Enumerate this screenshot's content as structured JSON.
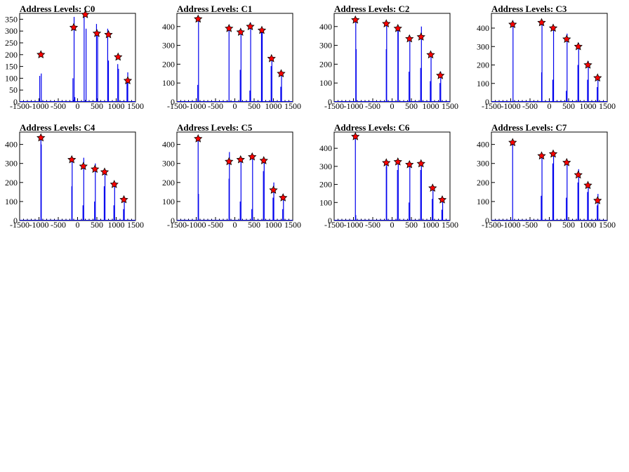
{
  "chart_data": [
    {
      "type": "bar",
      "title": "Address Levels: C0",
      "xlim": [
        -1500,
        1500
      ],
      "ylim": [
        0,
        375
      ],
      "xticks": [
        "-1500",
        "-1000",
        "-500",
        "0",
        "500",
        "1000",
        "1500"
      ],
      "yticks": [
        "0",
        "50",
        "100",
        "150",
        "200",
        "250",
        "300",
        "350"
      ],
      "peaks": [
        [
          -950,
          200
        ],
        [
          -100,
          315
        ],
        [
          200,
          370
        ],
        [
          500,
          290
        ],
        [
          800,
          285
        ],
        [
          1050,
          190
        ],
        [
          1300,
          90
        ]
      ],
      "spikes": [
        [
          -980,
          110
        ],
        [
          -940,
          120
        ],
        [
          -120,
          100
        ],
        [
          -90,
          360
        ],
        [
          -70,
          20
        ],
        [
          170,
          360
        ],
        [
          220,
          310
        ],
        [
          490,
          330
        ],
        [
          520,
          280
        ],
        [
          780,
          310
        ],
        [
          800,
          175
        ],
        [
          1040,
          160
        ],
        [
          1060,
          140
        ],
        [
          1280,
          80
        ],
        [
          1300,
          125
        ]
      ]
    },
    {
      "type": "bar",
      "title": "Address Levels: C1",
      "xlim": [
        -1500,
        1500
      ],
      "ylim": [
        0,
        470
      ],
      "xticks": [
        "-1500",
        "-1000",
        "-500",
        "0",
        "500",
        "1000",
        "1500"
      ],
      "yticks": [
        "0",
        "100",
        "200",
        "300",
        "400"
      ],
      "peaks": [
        [
          -950,
          440
        ],
        [
          -150,
          390
        ],
        [
          150,
          370
        ],
        [
          400,
          400
        ],
        [
          700,
          380
        ],
        [
          950,
          230
        ],
        [
          1200,
          150
        ]
      ],
      "spikes": [
        [
          -960,
          90
        ],
        [
          -940,
          450
        ],
        [
          -150,
          380
        ],
        [
          140,
          170
        ],
        [
          160,
          380
        ],
        [
          390,
          60
        ],
        [
          410,
          420
        ],
        [
          690,
          390
        ],
        [
          710,
          370
        ],
        [
          940,
          190
        ],
        [
          960,
          240
        ],
        [
          1190,
          80
        ],
        [
          1210,
          160
        ]
      ]
    },
    {
      "type": "bar",
      "title": "Address Levels: C2",
      "xlim": [
        -1500,
        1500
      ],
      "ylim": [
        0,
        470
      ],
      "xticks": [
        "-1500",
        "-1000",
        "-500",
        "0",
        "500",
        "1000",
        "1500"
      ],
      "yticks": [
        "0",
        "100",
        "200",
        "300",
        "400"
      ],
      "peaks": [
        [
          -950,
          435
        ],
        [
          -150,
          415
        ],
        [
          150,
          390
        ],
        [
          450,
          335
        ],
        [
          750,
          345
        ],
        [
          1000,
          250
        ],
        [
          1250,
          140
        ]
      ],
      "spikes": [
        [
          -940,
          440
        ],
        [
          -930,
          280
        ],
        [
          -150,
          280
        ],
        [
          -140,
          420
        ],
        [
          150,
          380
        ],
        [
          160,
          400
        ],
        [
          440,
          160
        ],
        [
          460,
          340
        ],
        [
          740,
          180
        ],
        [
          760,
          400
        ],
        [
          990,
          110
        ],
        [
          1010,
          260
        ],
        [
          1240,
          100
        ],
        [
          1260,
          160
        ]
      ]
    },
    {
      "type": "bar",
      "title": "Address Levels: C3",
      "xlim": [
        -1500,
        1500
      ],
      "ylim": [
        0,
        480
      ],
      "xticks": [
        "-1500",
        "-1000",
        "-500",
        "0",
        "500",
        "1000",
        "1500"
      ],
      "yticks": [
        "0",
        "100",
        "200",
        "300",
        "400"
      ],
      "peaks": [
        [
          -950,
          420
        ],
        [
          -200,
          430
        ],
        [
          100,
          400
        ],
        [
          450,
          340
        ],
        [
          750,
          300
        ],
        [
          1000,
          200
        ],
        [
          1250,
          130
        ]
      ],
      "spikes": [
        [
          -940,
          440
        ],
        [
          -200,
          160
        ],
        [
          -190,
          440
        ],
        [
          90,
          120
        ],
        [
          110,
          400
        ],
        [
          440,
          60
        ],
        [
          460,
          370
        ],
        [
          740,
          200
        ],
        [
          760,
          320
        ],
        [
          990,
          120
        ],
        [
          1010,
          220
        ],
        [
          1240,
          80
        ],
        [
          1260,
          140
        ]
      ]
    },
    {
      "type": "bar",
      "title": "Address Levels: C4",
      "xlim": [
        -1500,
        1500
      ],
      "ylim": [
        0,
        465
      ],
      "xticks": [
        "-1500",
        "-1000",
        "-500",
        "0",
        "500",
        "1000",
        "1500"
      ],
      "yticks": [
        "0",
        "100",
        "200",
        "300",
        "400"
      ],
      "peaks": [
        [
          -950,
          435
        ],
        [
          -150,
          320
        ],
        [
          150,
          285
        ],
        [
          450,
          270
        ],
        [
          700,
          255
        ],
        [
          950,
          190
        ],
        [
          1200,
          110
        ]
      ],
      "spikes": [
        [
          -950,
          440
        ],
        [
          -940,
          400
        ],
        [
          -150,
          180
        ],
        [
          -140,
          330
        ],
        [
          140,
          80
        ],
        [
          160,
          330
        ],
        [
          440,
          100
        ],
        [
          460,
          300
        ],
        [
          690,
          180
        ],
        [
          710,
          270
        ],
        [
          940,
          80
        ],
        [
          960,
          200
        ],
        [
          1190,
          60
        ],
        [
          1210,
          120
        ]
      ]
    },
    {
      "type": "bar",
      "title": "Address Levels: C5",
      "xlim": [
        -1500,
        1500
      ],
      "ylim": [
        0,
        465
      ],
      "xticks": [
        "-1500",
        "-1000",
        "-500",
        "0",
        "500",
        "1000",
        "1500"
      ],
      "yticks": [
        "0",
        "100",
        "200",
        "300",
        "400"
      ],
      "peaks": [
        [
          -950,
          430
        ],
        [
          -150,
          310
        ],
        [
          150,
          320
        ],
        [
          450,
          335
        ],
        [
          750,
          315
        ],
        [
          1000,
          160
        ],
        [
          1250,
          120
        ]
      ],
      "spikes": [
        [
          -950,
          440
        ],
        [
          -940,
          140
        ],
        [
          -150,
          220
        ],
        [
          -140,
          360
        ],
        [
          140,
          100
        ],
        [
          160,
          330
        ],
        [
          440,
          60
        ],
        [
          460,
          340
        ],
        [
          740,
          260
        ],
        [
          760,
          320
        ],
        [
          990,
          120
        ],
        [
          1010,
          200
        ],
        [
          1240,
          60
        ],
        [
          1260,
          130
        ]
      ]
    },
    {
      "type": "bar",
      "title": "Address Levels: C6",
      "xlim": [
        -1500,
        1500
      ],
      "ylim": [
        0,
        490
      ],
      "xticks": [
        "-1500",
        "-1000",
        "-500",
        "0",
        "500",
        "1000",
        "1500"
      ],
      "yticks": [
        "0",
        "100",
        "200",
        "300",
        "400"
      ],
      "peaks": [
        [
          -950,
          465
        ],
        [
          -150,
          320
        ],
        [
          150,
          325
        ],
        [
          450,
          310
        ],
        [
          750,
          315
        ],
        [
          1050,
          180
        ],
        [
          1300,
          115
        ]
      ],
      "spikes": [
        [
          -950,
          470
        ],
        [
          -940,
          30
        ],
        [
          -150,
          300
        ],
        [
          -140,
          330
        ],
        [
          140,
          280
        ],
        [
          160,
          330
        ],
        [
          440,
          100
        ],
        [
          460,
          320
        ],
        [
          740,
          280
        ],
        [
          760,
          320
        ],
        [
          1040,
          120
        ],
        [
          1060,
          190
        ],
        [
          1290,
          60
        ],
        [
          1310,
          120
        ]
      ]
    },
    {
      "type": "bar",
      "title": "Address Levels: C7",
      "xlim": [
        -1500,
        1500
      ],
      "ylim": [
        0,
        465
      ],
      "xticks": [
        "-1500",
        "-1000",
        "-500",
        "0",
        "500",
        "1000",
        "1500"
      ],
      "yticks": [
        "0",
        "100",
        "200",
        "300",
        "400"
      ],
      "peaks": [
        [
          -950,
          410
        ],
        [
          -200,
          340
        ],
        [
          100,
          350
        ],
        [
          450,
          305
        ],
        [
          750,
          240
        ],
        [
          1000,
          185
        ],
        [
          1250,
          105
        ]
      ],
      "spikes": [
        [
          -950,
          420
        ],
        [
          -210,
          130
        ],
        [
          -190,
          350
        ],
        [
          90,
          300
        ],
        [
          110,
          360
        ],
        [
          440,
          120
        ],
        [
          460,
          320
        ],
        [
          740,
          200
        ],
        [
          760,
          270
        ],
        [
          990,
          150
        ],
        [
          1010,
          190
        ],
        [
          1240,
          80
        ],
        [
          1260,
          140
        ]
      ]
    }
  ]
}
